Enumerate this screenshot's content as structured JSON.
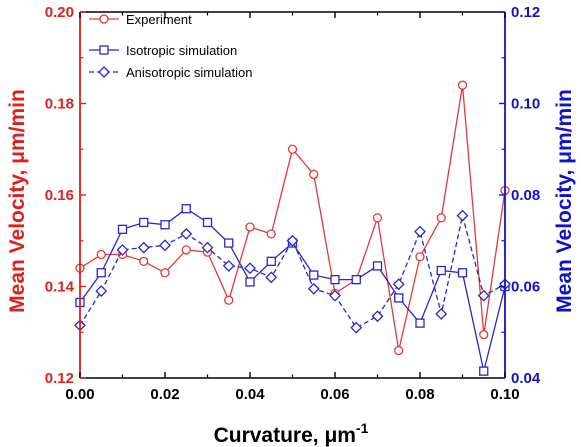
{
  "chart_data": {
    "type": "line",
    "xlabel": "Curvature, μm",
    "xlabel_superscript": "-1",
    "ylabel_left": "Mean Velocity, μm/min",
    "ylabel_right": "Mean Velocity, μm/min",
    "xlim": [
      0.0,
      0.1
    ],
    "ylim_left": [
      0.12,
      0.2
    ],
    "ylim_right": [
      0.04,
      0.12
    ],
    "x_ticks": [
      "0.00",
      "0.02",
      "0.04",
      "0.06",
      "0.08",
      "0.10"
    ],
    "y_left_ticks": [
      "0.12",
      "0.14",
      "0.16",
      "0.18",
      "0.20"
    ],
    "y_right_ticks": [
      "0.04",
      "0.06",
      "0.08",
      "0.10",
      "0.12"
    ],
    "grid": false,
    "legend_position": "top-left",
    "colors": {
      "left_axis": "#e0201c",
      "right_axis": "#1111cc",
      "experiment": "#e03a3a",
      "simulation": "#2828c8"
    },
    "series": [
      {
        "name": "Experiment",
        "axis": "left",
        "marker": "circle",
        "line_style": "solid",
        "x": [
          0.0,
          0.005,
          0.01,
          0.015,
          0.02,
          0.025,
          0.03,
          0.035,
          0.04,
          0.045,
          0.05,
          0.055,
          0.06,
          0.065,
          0.07,
          0.075,
          0.08,
          0.085,
          0.09,
          0.095,
          0.1
        ],
        "y": [
          0.144,
          0.147,
          0.147,
          0.1455,
          0.143,
          0.148,
          0.1475,
          0.137,
          0.153,
          0.1515,
          0.17,
          0.1645,
          0.1385,
          0.1415,
          0.155,
          0.126,
          0.1465,
          0.155,
          0.184,
          0.1295,
          0.161
        ]
      },
      {
        "name": "Isotropic simulation",
        "axis": "right",
        "marker": "square",
        "line_style": "solid",
        "x": [
          0.0,
          0.005,
          0.01,
          0.015,
          0.02,
          0.025,
          0.03,
          0.035,
          0.04,
          0.045,
          0.05,
          0.055,
          0.06,
          0.065,
          0.07,
          0.075,
          0.08,
          0.085,
          0.09,
          0.095,
          0.1
        ],
        "y": [
          0.0565,
          0.063,
          0.0725,
          0.074,
          0.0735,
          0.077,
          0.074,
          0.0695,
          0.061,
          0.0655,
          0.0695,
          0.0625,
          0.0615,
          0.0615,
          0.0645,
          0.0575,
          0.052,
          0.0635,
          0.063,
          0.0415,
          0.06
        ]
      },
      {
        "name": "Anisotropic simulation",
        "axis": "right",
        "marker": "diamond",
        "line_style": "dashed",
        "x": [
          0.0,
          0.005,
          0.01,
          0.015,
          0.02,
          0.025,
          0.03,
          0.035,
          0.04,
          0.045,
          0.05,
          0.055,
          0.06,
          0.065,
          0.07,
          0.075,
          0.08,
          0.085,
          0.09,
          0.095,
          0.1
        ],
        "y": [
          0.0515,
          0.059,
          0.068,
          0.0685,
          0.069,
          0.0715,
          0.0685,
          0.0645,
          0.064,
          0.062,
          0.07,
          0.0595,
          0.058,
          0.051,
          0.0535,
          0.0605,
          0.072,
          0.054,
          0.0755,
          0.058,
          0.0605
        ]
      }
    ]
  }
}
